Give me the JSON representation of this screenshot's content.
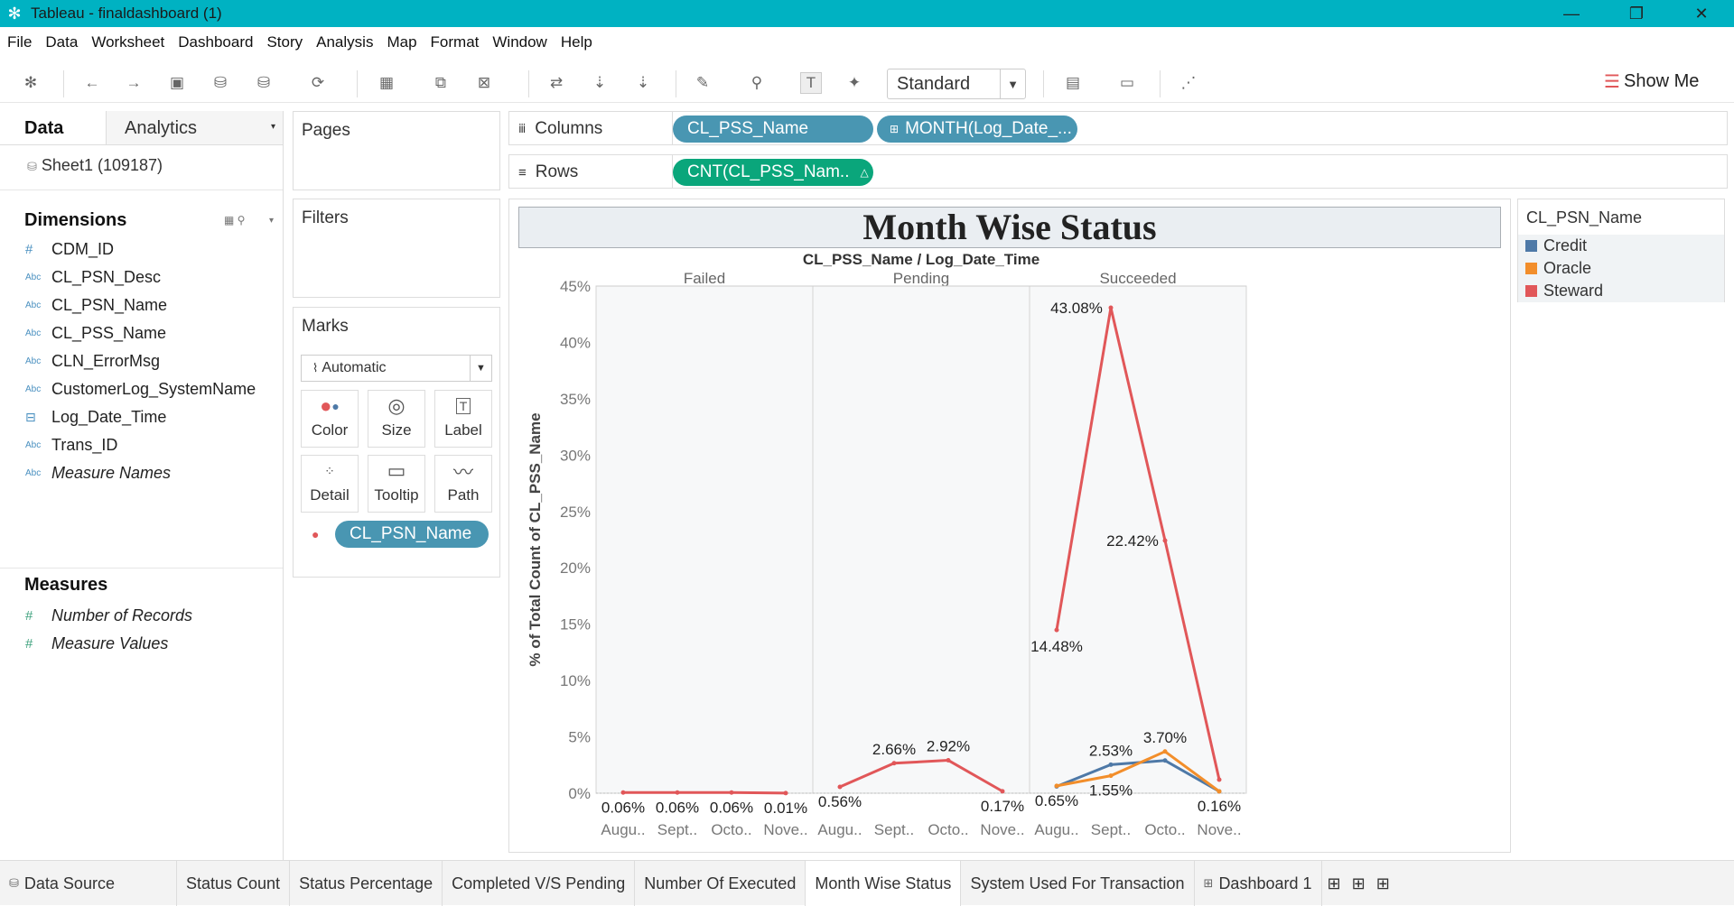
{
  "window": {
    "title": "Tableau - finaldashboard (1)"
  },
  "menu": [
    "File",
    "Data",
    "Worksheet",
    "Dashboard",
    "Story",
    "Analysis",
    "Map",
    "Format",
    "Window",
    "Help"
  ],
  "toolbar": {
    "fit_select": "Standard",
    "show_me": "Show Me"
  },
  "data_pane": {
    "tab_data": "Data",
    "tab_analytics": "Analytics",
    "source": "Sheet1 (109187)",
    "dimensions_label": "Dimensions",
    "dimensions": [
      {
        "name": "CDM_ID",
        "type": "num"
      },
      {
        "name": "CL_PSN_Desc",
        "type": "abc"
      },
      {
        "name": "CL_PSN_Name",
        "type": "abc"
      },
      {
        "name": "CL_PSS_Name",
        "type": "abc"
      },
      {
        "name": "CLN_ErrorMsg",
        "type": "abc"
      },
      {
        "name": "CustomerLog_SystemName",
        "type": "abc"
      },
      {
        "name": "Log_Date_Time",
        "type": "date"
      },
      {
        "name": "Trans_ID",
        "type": "abc"
      },
      {
        "name": "Measure Names",
        "type": "abc"
      }
    ],
    "measures_label": "Measures",
    "measures": [
      "Number of Records",
      "Measure Values"
    ]
  },
  "cards": {
    "pages": "Pages",
    "filters": "Filters",
    "marks": "Marks",
    "marks_type": "Automatic",
    "mark_buttons": [
      "Color",
      "Size",
      "Label",
      "Detail",
      "Tooltip",
      "Path"
    ],
    "color_pill": "CL_PSN_Name"
  },
  "shelves": {
    "columns_label": "Columns",
    "rows_label": "Rows",
    "columns_pills": [
      "CL_PSS_Name",
      "MONTH(Log_Date_..."
    ],
    "rows_pill": "CNT(CL_PSS_Nam.."
  },
  "legend": {
    "title": "CL_PSN_Name",
    "items": [
      {
        "label": "Credit",
        "color": "#4e79a7"
      },
      {
        "label": "Oracle",
        "color": "#f28e2b"
      },
      {
        "label": "Steward",
        "color": "#e15759"
      }
    ]
  },
  "chart_data": {
    "type": "line",
    "title": "Month Wise Status",
    "header": "CL_PSS_Name / Log_Date_Time",
    "ylabel": "% of Total Count of CL_PSS_Name",
    "ylim": [
      0,
      45
    ],
    "y_ticks": [
      "0%",
      "5%",
      "10%",
      "15%",
      "20%",
      "25%",
      "30%",
      "35%",
      "40%",
      "45%"
    ],
    "x_tick_labels": [
      "Augu..",
      "Sept..",
      "Octo..",
      "Nove.."
    ],
    "panes": [
      {
        "name": "Failed",
        "series": [
          {
            "name": "Steward",
            "values": [
              0.06,
              0.06,
              0.06,
              0.01
            ],
            "labels": [
              "0.06%",
              "0.06%",
              "0.06%",
              "0.01%"
            ]
          }
        ]
      },
      {
        "name": "Pending",
        "series": [
          {
            "name": "Steward",
            "values": [
              0.56,
              2.66,
              2.92,
              0.17
            ],
            "labels": [
              "0.56%",
              "2.66%",
              "2.92%",
              "0.17%"
            ]
          }
        ]
      },
      {
        "name": "Succeeded",
        "series": [
          {
            "name": "Credit",
            "values": [
              0.6,
              2.53,
              2.9,
              0.16
            ],
            "labels": [
              "",
              "2.53%",
              "",
              ""
            ]
          },
          {
            "name": "Oracle",
            "values": [
              0.65,
              1.55,
              3.7,
              0.16
            ],
            "labels": [
              "0.65%",
              "1.55%",
              "3.70%",
              "0.16%"
            ]
          },
          {
            "name": "Steward",
            "values": [
              14.48,
              43.08,
              22.42,
              1.2
            ],
            "labels": [
              "14.48%",
              "43.08%",
              "22.42%",
              ""
            ]
          }
        ]
      }
    ]
  },
  "sheet_tabs": [
    "Data Source",
    "Status Count",
    "Status Percentage",
    "Completed V/S Pending",
    "Number Of Executed",
    "Month Wise Status",
    "System Used For Transaction",
    "Dashboard 1"
  ],
  "active_tab": "Month Wise Status"
}
